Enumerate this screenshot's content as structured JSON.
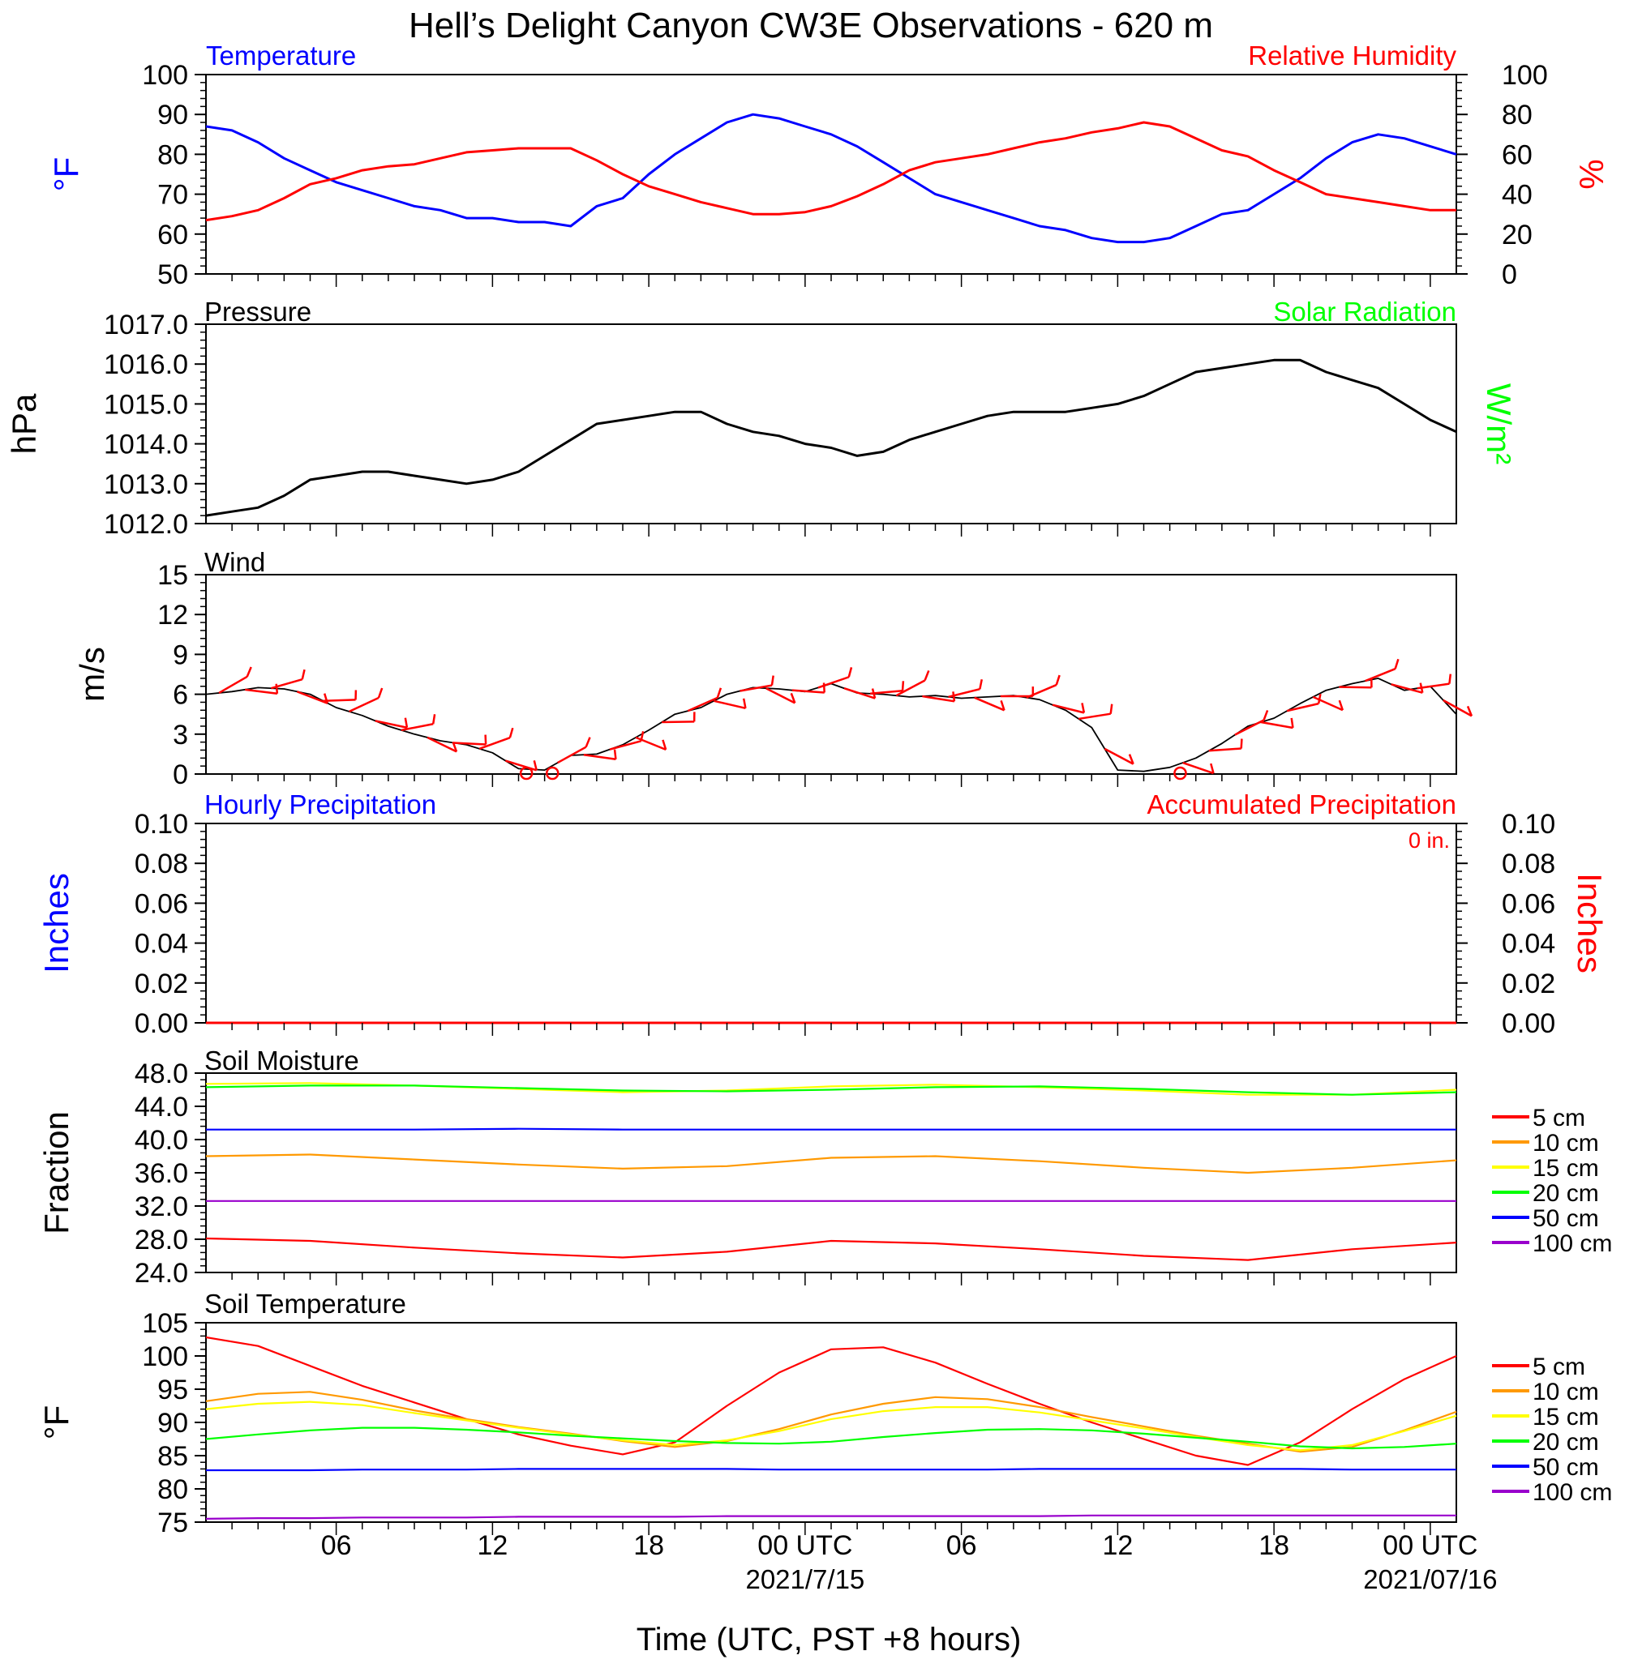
{
  "title": "Hell’s Delight Canyon CW3E Observations - 620 m",
  "xlabel": "Time (UTC, PST +8 hours)",
  "x_axis": {
    "range_hours": [
      0,
      48
    ],
    "ticks": [
      {
        "h": 5,
        "label": "06",
        "sub": ""
      },
      {
        "h": 11,
        "label": "12",
        "sub": ""
      },
      {
        "h": 17,
        "label": "18",
        "sub": ""
      },
      {
        "h": 23,
        "label": "00 UTC",
        "sub": "2021/7/15"
      },
      {
        "h": 29,
        "label": "06",
        "sub": ""
      },
      {
        "h": 35,
        "label": "12",
        "sub": ""
      },
      {
        "h": 41,
        "label": "18",
        "sub": ""
      },
      {
        "h": 47,
        "label": "00 UTC",
        "sub": "2021/07/16"
      }
    ]
  },
  "colors": {
    "temperature": "#0000ff",
    "humidity": "#ff0000",
    "pressure": "#000000",
    "solar": "#00ff00",
    "wind": "#000000",
    "barbs": "#ff0000",
    "soil": [
      "#ff0000",
      "#ff9900",
      "#ffff00",
      "#00ff00",
      "#0000ff",
      "#9900cc"
    ]
  },
  "panels": {
    "temp_rh": {
      "left_title": "Temperature",
      "right_title": "Relative Humidity",
      "left_unit": "°F",
      "right_unit": "%",
      "left_ticks": [
        "50",
        "60",
        "70",
        "80",
        "90",
        "100"
      ],
      "right_ticks": [
        "0",
        "20",
        "40",
        "60",
        "80",
        "100"
      ]
    },
    "pressure": {
      "left_title": "Pressure",
      "right_title": "Solar Radiation",
      "left_unit": "hPa",
      "right_unit": "W/m²",
      "left_ticks": [
        "1012.0",
        "1013.0",
        "1014.0",
        "1015.0",
        "1016.0",
        "1017.0"
      ]
    },
    "wind": {
      "left_title": "Wind",
      "left_unit": "m/s",
      "left_ticks": [
        "0",
        "3",
        "6",
        "9",
        "12",
        "15"
      ]
    },
    "precip": {
      "left_title": "Hourly Precipitation",
      "right_title": "Accumulated Precipitation",
      "accum_text": "0 in.",
      "left_unit": "Inches",
      "right_unit": "Inches",
      "left_ticks": [
        "0.00",
        "0.02",
        "0.04",
        "0.06",
        "0.08",
        "0.10"
      ],
      "right_ticks": [
        "0.00",
        "0.02",
        "0.04",
        "0.06",
        "0.08",
        "0.10"
      ]
    },
    "soil_moisture": {
      "left_title": "Soil Moisture",
      "left_unit": "Fraction",
      "left_ticks": [
        "24.0",
        "28.0",
        "32.0",
        "36.0",
        "40.0",
        "44.0",
        "48.0"
      ],
      "legend": [
        "5 cm",
        "10 cm",
        "15 cm",
        "20 cm",
        "50 cm",
        "100 cm"
      ]
    },
    "soil_temp": {
      "left_title": "Soil Temperature",
      "left_unit": "°F",
      "left_ticks": [
        "75",
        "80",
        "85",
        "90",
        "95",
        "100",
        "105"
      ],
      "legend": [
        "5 cm",
        "10 cm",
        "15 cm",
        "20 cm",
        "50 cm",
        "100 cm"
      ]
    }
  },
  "chart_data": [
    {
      "type": "line",
      "name": "temp_rh",
      "ylim": [
        50,
        100
      ],
      "y2lim": [
        0,
        100
      ],
      "series": [
        {
          "name": "Temperature",
          "axis": "left",
          "x": [
            0,
            1,
            2,
            3,
            4,
            5,
            6,
            7,
            8,
            9,
            10,
            11,
            12,
            13,
            14,
            15,
            16,
            17,
            18,
            19,
            20,
            21,
            22,
            23,
            24,
            25,
            26,
            27,
            28,
            29,
            30,
            31,
            32,
            33,
            34,
            35,
            36,
            37,
            38,
            39,
            40,
            41,
            42,
            43,
            44,
            45,
            46,
            47,
            48
          ],
          "y": [
            87,
            86,
            83,
            79,
            76,
            73,
            71,
            69,
            67,
            66,
            64,
            64,
            63,
            63,
            62,
            67,
            69,
            75,
            80,
            84,
            88,
            90,
            89,
            87,
            85,
            82,
            78,
            74,
            70,
            68,
            66,
            64,
            62,
            61,
            59,
            58,
            58,
            59,
            62,
            65,
            66,
            70,
            74,
            79,
            83,
            85,
            84,
            82,
            80
          ]
        },
        {
          "name": "Relative Humidity",
          "axis": "right",
          "x": [
            0,
            1,
            2,
            3,
            4,
            5,
            6,
            7,
            8,
            9,
            10,
            11,
            12,
            13,
            14,
            15,
            16,
            17,
            18,
            19,
            20,
            21,
            22,
            23,
            24,
            25,
            26,
            27,
            28,
            29,
            30,
            31,
            32,
            33,
            34,
            35,
            36,
            37,
            38,
            39,
            40,
            41,
            42,
            43,
            44,
            45,
            46,
            47,
            48
          ],
          "y": [
            27,
            29,
            32,
            38,
            45,
            48,
            52,
            54,
            55,
            58,
            61,
            62,
            63,
            63,
            63,
            57,
            50,
            44,
            40,
            36,
            33,
            30,
            30,
            31,
            34,
            39,
            45,
            52,
            56,
            58,
            60,
            63,
            66,
            68,
            71,
            73,
            76,
            74,
            68,
            62,
            59,
            52,
            46,
            40,
            38,
            36,
            34,
            32,
            32
          ]
        }
      ]
    },
    {
      "type": "line",
      "name": "pressure",
      "ylim": [
        1012.0,
        1017.0
      ],
      "series": [
        {
          "name": "Pressure",
          "x": [
            0,
            1,
            2,
            3,
            4,
            5,
            6,
            7,
            8,
            9,
            10,
            11,
            12,
            13,
            14,
            15,
            16,
            17,
            18,
            19,
            20,
            21,
            22,
            23,
            24,
            25,
            26,
            27,
            28,
            29,
            30,
            31,
            32,
            33,
            34,
            35,
            36,
            37,
            38,
            39,
            40,
            41,
            42,
            43,
            44,
            45,
            46,
            47,
            48
          ],
          "y": [
            1012.2,
            1012.3,
            1012.4,
            1012.7,
            1013.1,
            1013.2,
            1013.3,
            1013.3,
            1013.2,
            1013.1,
            1013.0,
            1013.1,
            1013.3,
            1013.7,
            1014.1,
            1014.5,
            1014.6,
            1014.7,
            1014.8,
            1014.8,
            1014.5,
            1014.3,
            1014.2,
            1014.0,
            1013.9,
            1013.7,
            1013.8,
            1014.1,
            1014.3,
            1014.5,
            1014.7,
            1014.8,
            1014.8,
            1014.8,
            1014.9,
            1015.0,
            1015.2,
            1015.5,
            1015.8,
            1015.9,
            1016.0,
            1016.1,
            1016.1,
            1015.8,
            1015.6,
            1015.4,
            1015.0,
            1014.6,
            1014.3
          ]
        }
      ]
    },
    {
      "type": "line",
      "name": "wind",
      "ylim": [
        0,
        15
      ],
      "series": [
        {
          "name": "Wind",
          "x": [
            0,
            1,
            2,
            3,
            4,
            5,
            6,
            7,
            8,
            9,
            10,
            11,
            12,
            13,
            14,
            15,
            16,
            17,
            18,
            19,
            20,
            21,
            22,
            23,
            24,
            25,
            26,
            27,
            28,
            29,
            30,
            31,
            32,
            33,
            34,
            35,
            36,
            37,
            38,
            39,
            40,
            41,
            42,
            43,
            44,
            45,
            46,
            47,
            48
          ],
          "y": [
            6,
            6.2,
            6.5,
            6.4,
            6,
            5,
            4.4,
            3.6,
            3,
            2.5,
            2.2,
            1.6,
            0.4,
            0.3,
            1.4,
            1.5,
            2.2,
            3.3,
            4.5,
            5,
            6,
            6.5,
            6.4,
            6.2,
            6.8,
            6.1,
            6.0,
            5.8,
            5.9,
            5.7,
            5.8,
            5.9,
            5.6,
            4.8,
            3.5,
            0.3,
            0.2,
            0.5,
            1.2,
            2.3,
            3.6,
            4.2,
            5.3,
            6.3,
            6.8,
            7.2,
            6.3,
            6.6,
            4.5
          ]
        }
      ],
      "barb_times": [
        0.5,
        1.5,
        2.5,
        3.5,
        4.5,
        5.5,
        6.5,
        7.5,
        8.5,
        9.5,
        10.5,
        11.5,
        12.5,
        13.5,
        14.5,
        15.5,
        16.5,
        17.5,
        18.5,
        19.5,
        20.5,
        21.5,
        22.5,
        23.5,
        24.5,
        25.5,
        26.5,
        27.5,
        28.5,
        29.5,
        30.5,
        31.5,
        32.5,
        33.5,
        34.5,
        35.5,
        36.5,
        37.5,
        38.5,
        39.5,
        40.5,
        41.5,
        42.5,
        43.5,
        44.5,
        45.5,
        46.5,
        47.5
      ],
      "calm_times": [
        12.3,
        13.3,
        37.4
      ]
    },
    {
      "type": "line",
      "name": "precip",
      "ylim": [
        0,
        0.1
      ],
      "series": [
        {
          "name": "Hourly Precipitation",
          "x": [
            0,
            48
          ],
          "y": [
            0,
            0
          ]
        },
        {
          "name": "Accumulated Precipitation",
          "x": [
            0,
            48
          ],
          "y": [
            0,
            0
          ]
        }
      ]
    },
    {
      "type": "line",
      "name": "soil_moisture",
      "ylim": [
        24.0,
        48.0
      ],
      "x": [
        0,
        4,
        8,
        12,
        16,
        20,
        24,
        28,
        32,
        36,
        40,
        44,
        48
      ],
      "series": [
        {
          "name": "5 cm",
          "y": [
            28.1,
            27.8,
            27.0,
            26.3,
            25.8,
            26.5,
            27.8,
            27.5,
            26.8,
            26.0,
            25.5,
            26.8,
            27.6
          ]
        },
        {
          "name": "10 cm",
          "y": [
            38.0,
            38.2,
            37.6,
            37.0,
            36.5,
            36.8,
            37.8,
            38.0,
            37.4,
            36.6,
            36.0,
            36.6,
            37.5
          ]
        },
        {
          "name": "15 cm",
          "y": [
            46.7,
            46.8,
            46.5,
            46.1,
            45.7,
            45.9,
            46.4,
            46.6,
            46.3,
            45.9,
            45.4,
            45.4,
            46.0
          ]
        },
        {
          "name": "20 cm",
          "y": [
            46.3,
            46.5,
            46.5,
            46.2,
            45.9,
            45.8,
            46.0,
            46.3,
            46.4,
            46.1,
            45.7,
            45.4,
            45.7
          ]
        },
        {
          "name": "50 cm",
          "y": [
            41.2,
            41.2,
            41.2,
            41.3,
            41.2,
            41.2,
            41.2,
            41.2,
            41.2,
            41.2,
            41.2,
            41.2,
            41.2
          ]
        },
        {
          "name": "100 cm",
          "y": [
            32.6,
            32.6,
            32.6,
            32.6,
            32.6,
            32.6,
            32.6,
            32.6,
            32.6,
            32.6,
            32.6,
            32.6,
            32.6
          ]
        }
      ]
    },
    {
      "type": "line",
      "name": "soil_temp",
      "ylim": [
        75,
        105
      ],
      "x": [
        0,
        2,
        4,
        6,
        8,
        10,
        12,
        14,
        16,
        18,
        20,
        22,
        24,
        26,
        28,
        30,
        32,
        34,
        36,
        38,
        40,
        42,
        44,
        46,
        48
      ],
      "series": [
        {
          "name": "5 cm",
          "y": [
            102.8,
            101.5,
            98.5,
            95.5,
            93,
            90.5,
            88.2,
            86.5,
            85.2,
            87,
            92.5,
            97.5,
            101,
            101.3,
            99,
            95.8,
            92.8,
            90,
            87.5,
            85,
            83.6,
            87,
            92,
            96.5,
            100
          ]
        },
        {
          "name": "10 cm",
          "y": [
            93.2,
            94.3,
            94.6,
            93.4,
            91.8,
            90.5,
            89.3,
            88.3,
            87.2,
            86.3,
            87.2,
            89,
            91.2,
            92.8,
            93.8,
            93.5,
            92.3,
            90.8,
            89.4,
            88,
            86.8,
            85.6,
            86.3,
            88.8,
            91.6
          ]
        },
        {
          "name": "15 cm",
          "y": [
            92,
            92.8,
            93.1,
            92.6,
            91.4,
            90.3,
            89.2,
            88.2,
            87.3,
            86.6,
            87.3,
            88.7,
            90.5,
            91.7,
            92.3,
            92.3,
            91.5,
            90.3,
            89.1,
            87.8,
            86.6,
            85.8,
            86.6,
            88.7,
            91
          ]
        },
        {
          "name": "20 cm",
          "y": [
            87.5,
            88.2,
            88.8,
            89.2,
            89.2,
            88.9,
            88.5,
            88,
            87.6,
            87.2,
            86.9,
            86.8,
            87.1,
            87.8,
            88.4,
            88.9,
            89,
            88.8,
            88.3,
            87.7,
            87.1,
            86.4,
            86.1,
            86.3,
            86.8
          ]
        },
        {
          "name": "50 cm",
          "y": [
            82.8,
            82.8,
            82.8,
            82.9,
            82.9,
            82.9,
            83,
            83,
            83,
            83,
            83,
            82.9,
            82.9,
            82.9,
            82.9,
            82.9,
            83,
            83,
            83,
            83,
            83,
            83,
            82.9,
            82.9,
            82.9
          ]
        },
        {
          "name": "100 cm",
          "y": [
            75.5,
            75.6,
            75.6,
            75.7,
            75.7,
            75.7,
            75.8,
            75.8,
            75.8,
            75.8,
            75.9,
            75.9,
            75.9,
            75.9,
            75.9,
            75.9,
            75.9,
            76,
            76,
            76,
            76,
            76,
            76,
            76,
            76
          ]
        }
      ]
    }
  ]
}
